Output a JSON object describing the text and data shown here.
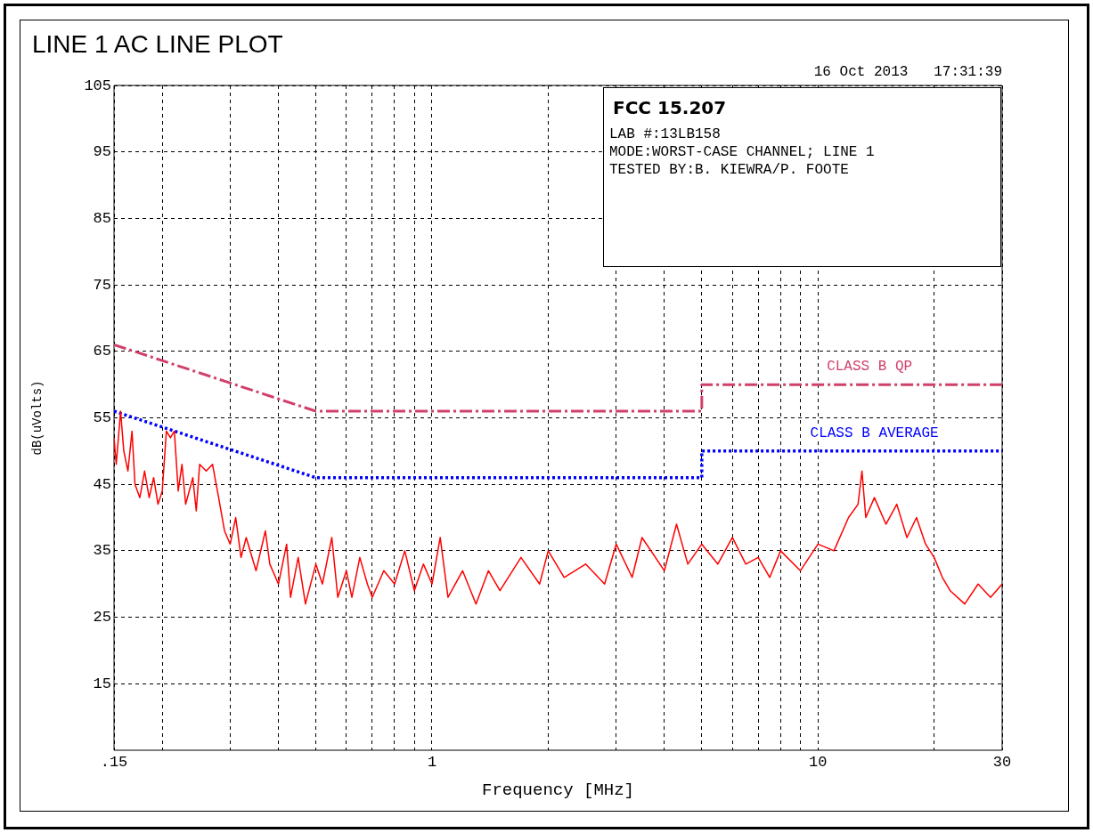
{
  "chart_data": {
    "type": "line",
    "title": "LINE 1 AC LINE PLOT",
    "subtitle": "FCC 15.207",
    "xlabel": "Frequency [MHz]",
    "ylabel": "dB(uVolts)",
    "annotations": [
      "16 Oct 2013   17:31:39",
      "LAB #:13LB158",
      "MODE:WORST-CASE CHANNEL; LINE 1",
      "TESTED BY:B. KIEWRA/P. FOOTE",
      {
        "text": "CLASS B QP",
        "x": 13.6,
        "y": 60
      },
      {
        "text": "CLASS B AVERAGE",
        "x": 14,
        "y": 50
      }
    ],
    "log": "x",
    "grid": true,
    "legend": false,
    "marker": "none",
    "xlim": [
      0.15,
      30
    ],
    "ylim": [
      5,
      105
    ],
    "xticks": [
      {
        "value": 0.15,
        "label": ".15"
      },
      {
        "value": 0.2,
        "label": null
      },
      {
        "value": 0.3,
        "label": null
      },
      {
        "value": 0.4,
        "label": null
      },
      {
        "value": 0.5,
        "label": null
      },
      {
        "value": 0.6,
        "label": null
      },
      {
        "value": 0.7,
        "label": null
      },
      {
        "value": 0.8,
        "label": null
      },
      {
        "value": 0.9,
        "label": null
      },
      1,
      {
        "value": 2,
        "label": null
      },
      {
        "value": 3,
        "label": null
      },
      {
        "value": 4,
        "label": null
      },
      {
        "value": 5,
        "label": null
      },
      {
        "value": 6,
        "label": null
      },
      {
        "value": 7,
        "label": null
      },
      {
        "value": 8,
        "label": null
      },
      {
        "value": 9,
        "label": null
      },
      10,
      {
        "value": 20,
        "label": null
      },
      30
    ],
    "yticks": [
      15,
      25,
      35,
      45,
      55,
      65,
      75,
      85,
      95,
      105
    ],
    "series": [
      {
        "color": "#ff0000",
        "line_style": "solid",
        "x": [
          0.15,
          0.152,
          0.156,
          0.159,
          0.163,
          0.167,
          0.17,
          0.175,
          0.18,
          0.185,
          0.19,
          0.195,
          0.2,
          0.205,
          0.21,
          0.215,
          0.22,
          0.225,
          0.23,
          0.24,
          0.245,
          0.25,
          0.26,
          0.27,
          0.28,
          0.29,
          0.3,
          0.31,
          0.32,
          0.33,
          0.35,
          0.37,
          0.38,
          0.4,
          0.42,
          0.43,
          0.45,
          0.47,
          0.5,
          0.52,
          0.55,
          0.57,
          0.6,
          0.62,
          0.65,
          0.68,
          0.7,
          0.75,
          0.8,
          0.85,
          0.9,
          0.95,
          1.0,
          1.05,
          1.1,
          1.2,
          1.3,
          1.4,
          1.5,
          1.7,
          1.9,
          2.0,
          2.2,
          2.5,
          2.8,
          3.0,
          3.3,
          3.5,
          4.0,
          4.3,
          4.6,
          5.0,
          5.5,
          6.0,
          6.5,
          7.0,
          7.5,
          8.0,
          9.0,
          10.0,
          11.0,
          12.0,
          12.7,
          13.0,
          13.3,
          14,
          15,
          16,
          17,
          18,
          19,
          20,
          21,
          22,
          24,
          26,
          28,
          30
        ],
        "values": [
          52,
          48,
          56,
          50,
          47,
          53,
          45,
          43,
          47,
          43,
          46,
          42,
          44,
          53,
          52,
          53,
          44,
          48,
          42,
          46,
          41,
          48,
          47,
          48,
          43,
          38,
          36,
          40,
          34,
          37,
          32,
          38,
          33,
          30,
          36,
          28,
          34,
          27,
          33,
          30,
          37,
          28,
          32,
          28,
          34,
          30,
          28,
          32,
          30,
          35,
          29,
          33,
          30,
          37,
          28,
          32,
          27,
          32,
          29,
          34,
          30,
          35,
          31,
          33,
          30,
          36,
          31,
          37,
          32,
          39,
          33,
          36,
          33,
          37,
          33,
          34,
          31,
          35,
          32,
          36,
          35,
          40,
          42,
          47,
          40,
          43,
          39,
          42,
          37,
          40,
          36,
          34,
          31,
          29,
          27,
          30,
          28,
          30
        ]
      },
      {
        "color": "#d0406a",
        "line_style": "dashed",
        "x": [
          0.15,
          0.5,
          5,
          5,
          30
        ],
        "values": [
          66,
          56,
          56,
          60,
          60
        ]
      },
      {
        "color": "#0000ff",
        "line_style": "dotted",
        "x": [
          0.15,
          0.5,
          5,
          5,
          30
        ],
        "values": [
          56,
          46,
          46,
          50,
          50
        ]
      }
    ]
  }
}
